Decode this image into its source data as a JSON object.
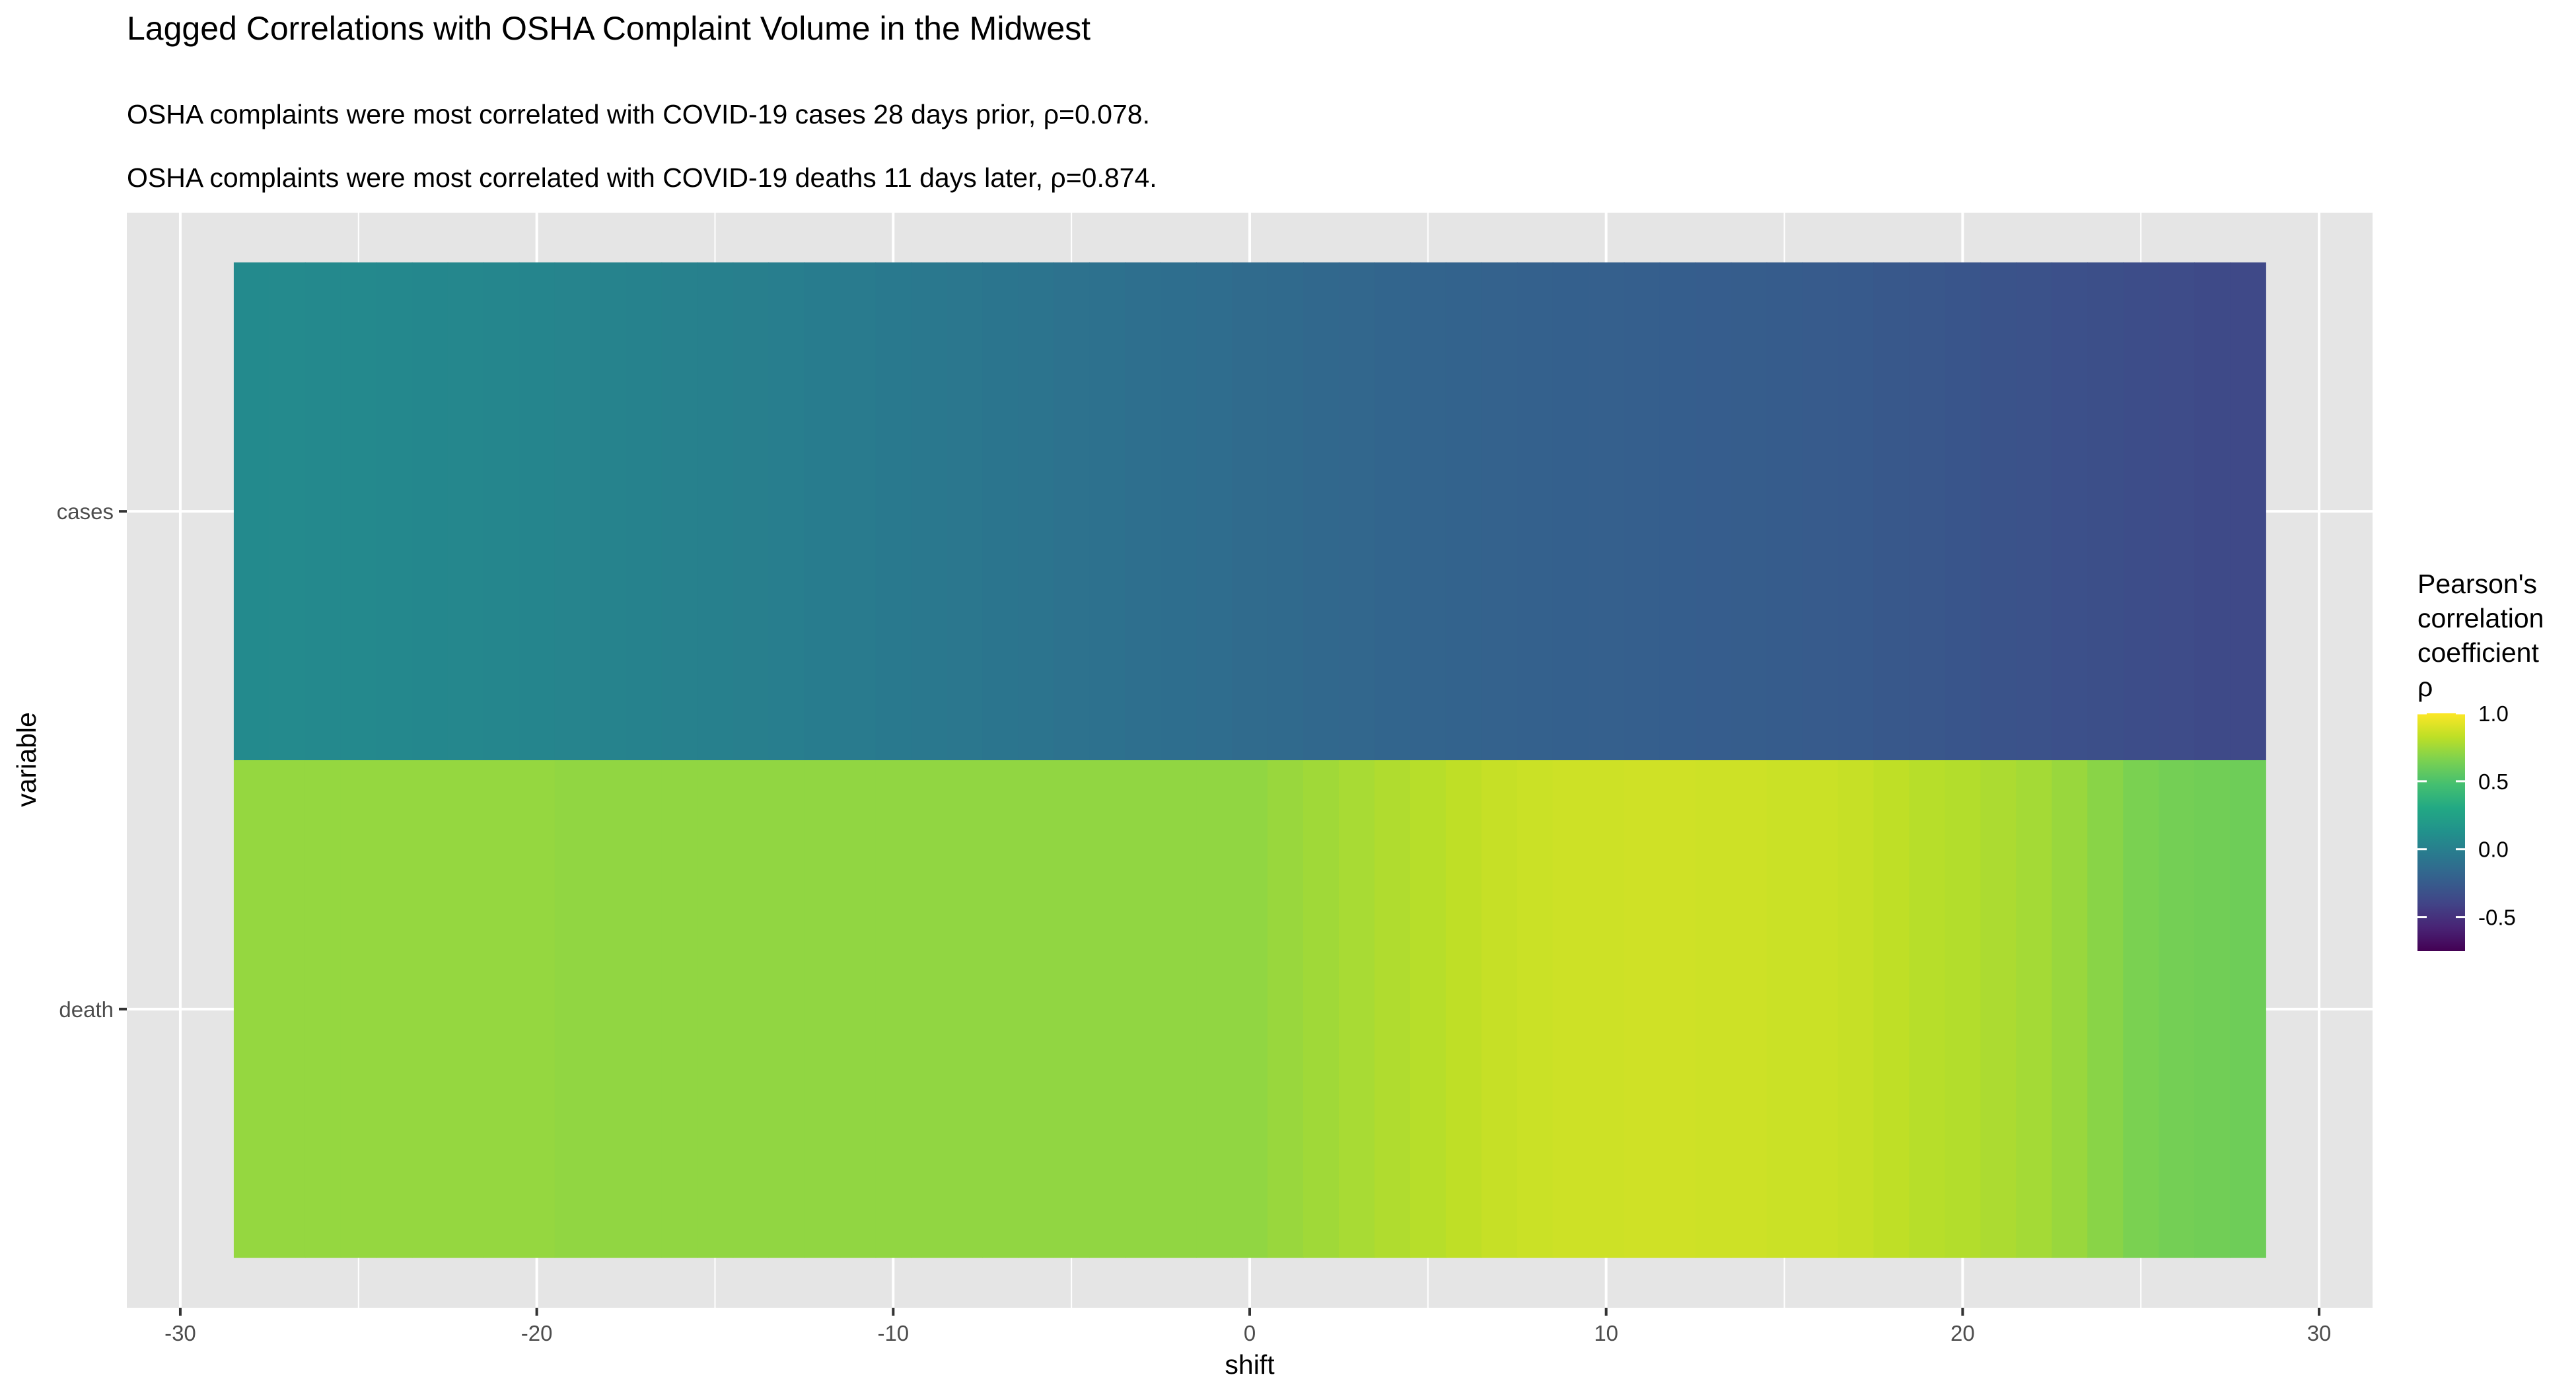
{
  "chart_data": {
    "type": "heatmap",
    "title": "Lagged Correlations with OSHA Complaint Volume in the Midwest",
    "subtitles": [
      "OSHA complaints were most correlated with COVID-19 cases 28 days prior, ρ=0.078.",
      "OSHA complaints were most correlated with COVID-19 deaths 11 days later, ρ=0.874."
    ],
    "xlabel": "shift",
    "ylabel": "variable",
    "xlim": [
      -31.5,
      31.5
    ],
    "x_ticks": [
      -30,
      -20,
      -10,
      0,
      10,
      20,
      30
    ],
    "x_tick_labels": [
      "-30",
      "-20",
      "-10",
      "0",
      "10",
      "20",
      "30"
    ],
    "categories": [
      "cases",
      "death"
    ],
    "x": [
      -28,
      -27,
      -26,
      -25,
      -24,
      -23,
      -22,
      -21,
      -20,
      -19,
      -18,
      -17,
      -16,
      -15,
      -14,
      -13,
      -12,
      -11,
      -10,
      -9,
      -8,
      -7,
      -6,
      -5,
      -4,
      -3,
      -2,
      -1,
      0,
      1,
      2,
      3,
      4,
      5,
      6,
      7,
      8,
      9,
      10,
      11,
      12,
      13,
      14,
      15,
      16,
      17,
      18,
      19,
      20,
      21,
      22,
      23,
      24,
      25,
      26,
      27,
      28
    ],
    "series": [
      {
        "name": "cases",
        "values": [
          0.078,
          0.075,
          0.072,
          0.068,
          0.064,
          0.058,
          0.052,
          0.045,
          0.038,
          0.032,
          0.026,
          0.02,
          0.013,
          0.006,
          -0.002,
          -0.01,
          -0.02,
          -0.03,
          -0.04,
          -0.05,
          -0.06,
          -0.07,
          -0.08,
          -0.09,
          -0.1,
          -0.11,
          -0.12,
          -0.13,
          -0.14,
          -0.15,
          -0.16,
          -0.17,
          -0.18,
          -0.19,
          -0.2,
          -0.205,
          -0.21,
          -0.215,
          -0.22,
          -0.225,
          -0.23,
          -0.235,
          -0.24,
          -0.245,
          -0.25,
          -0.26,
          -0.27,
          -0.28,
          -0.29,
          -0.3,
          -0.31,
          -0.32,
          -0.33,
          -0.34,
          -0.35,
          -0.36,
          -0.37
        ]
      },
      {
        "name": "death",
        "values": [
          0.72,
          0.72,
          0.72,
          0.72,
          0.72,
          0.72,
          0.72,
          0.72,
          0.72,
          0.71,
          0.71,
          0.71,
          0.71,
          0.71,
          0.71,
          0.71,
          0.71,
          0.71,
          0.71,
          0.71,
          0.71,
          0.71,
          0.71,
          0.71,
          0.71,
          0.71,
          0.71,
          0.71,
          0.71,
          0.73,
          0.75,
          0.77,
          0.79,
          0.81,
          0.83,
          0.85,
          0.86,
          0.87,
          0.87,
          0.874,
          0.874,
          0.87,
          0.87,
          0.86,
          0.86,
          0.85,
          0.83,
          0.81,
          0.8,
          0.78,
          0.76,
          0.73,
          0.69,
          0.65,
          0.63,
          0.62,
          0.61
        ]
      }
    ],
    "legend": {
      "title_lines": [
        "Pearson's",
        "correlation",
        "coefficient",
        "ρ"
      ],
      "ticks": [
        1.0,
        0.5,
        0.0,
        -0.5
      ],
      "tick_labels": [
        "1.0",
        "0.5",
        "0.0",
        "-0.5"
      ],
      "range": [
        -0.75,
        1.0
      ],
      "placement": "right"
    },
    "colors": {
      "panel_background": "#e5e5e5",
      "grid": "#ffffff",
      "colormap": "viridis"
    },
    "grid": true
  }
}
